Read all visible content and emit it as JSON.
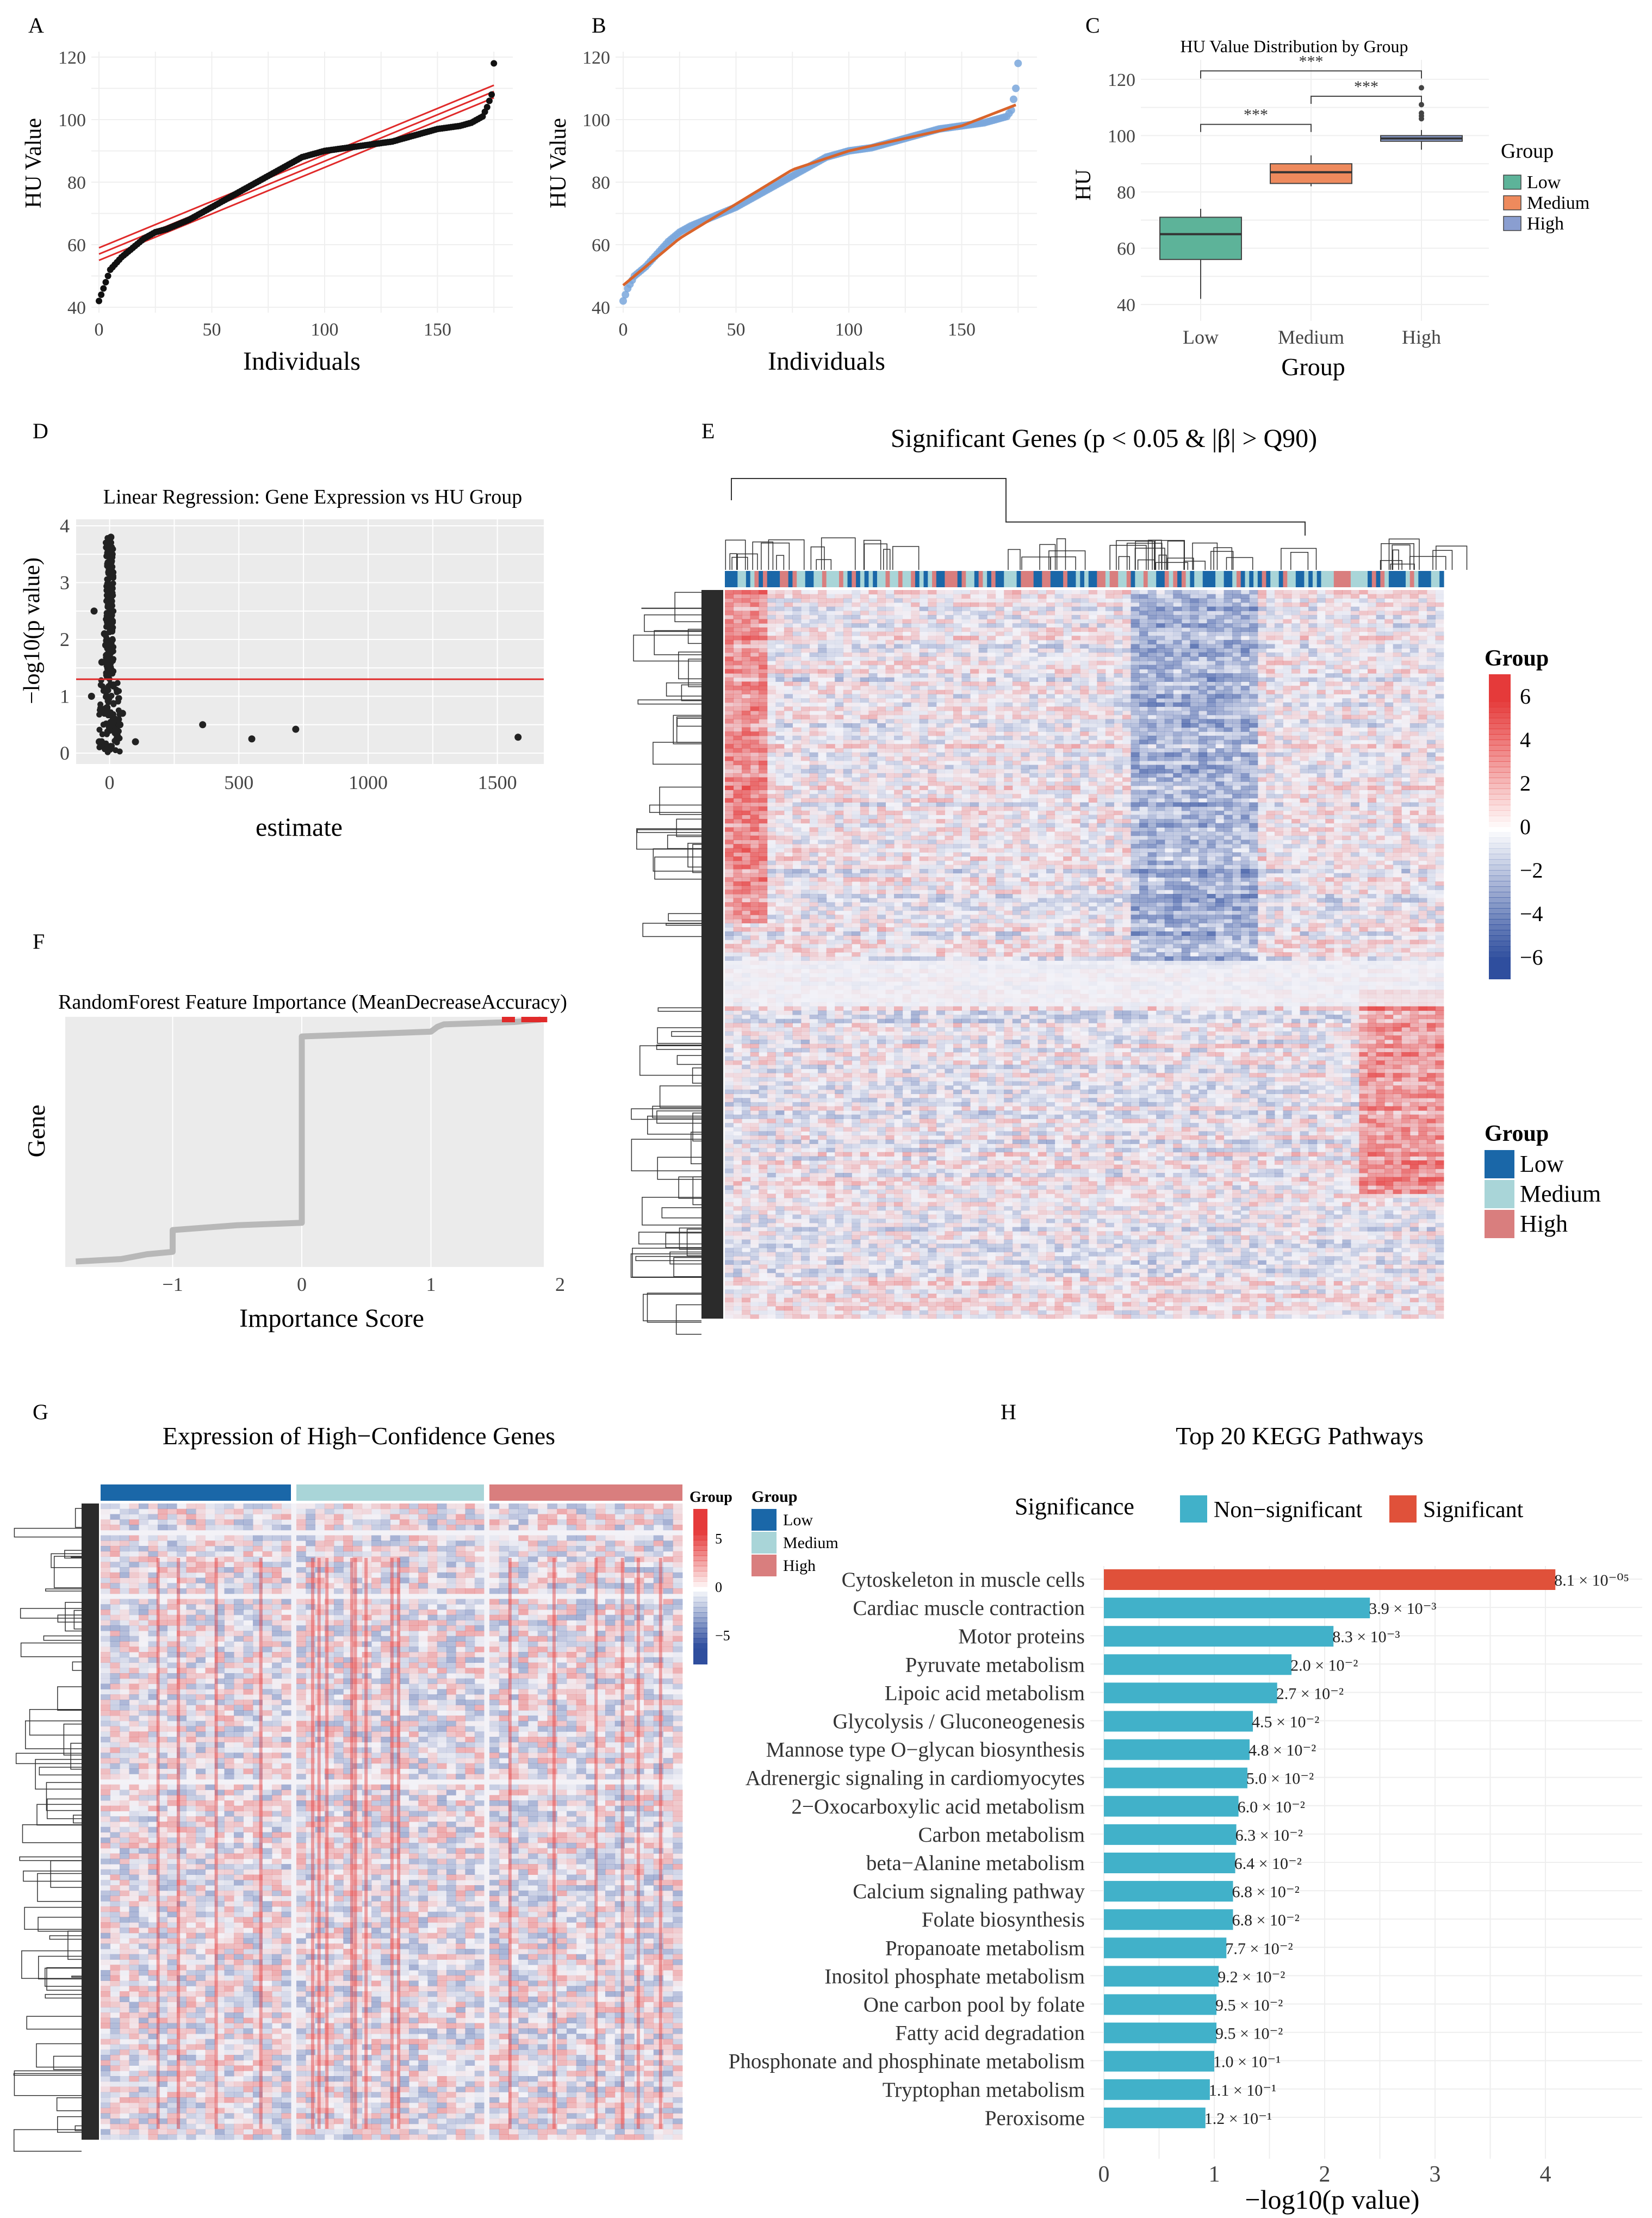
{
  "colors": {
    "low": "#5db399",
    "medium": "#ee8a5d",
    "high": "#8a9ed0",
    "heat_low": "#1a67a8",
    "heat_medium": "#a9d5d8",
    "heat_high": "#d97e7e",
    "significant": "#e0513a",
    "nonsignificant": "#41b1c9",
    "heat_pos": "#e53a3a",
    "heat_neg": "#2f4e9e",
    "panel_bg": "#ebebeb",
    "fit_red": "#e02a2a",
    "fit_orange": "#d9642b",
    "point_blue": "#7aa7dc"
  },
  "panels": {
    "A": {
      "label": "A",
      "xlabel": "Individuals",
      "ylabel": "HU Value",
      "xticks": [
        "0",
        "50",
        "100",
        "150"
      ],
      "yticks": [
        "40",
        "60",
        "80",
        "100",
        "120"
      ]
    },
    "B": {
      "label": "B",
      "xlabel": "Individuals",
      "ylabel": "HU Value",
      "xticks": [
        "0",
        "50",
        "100",
        "150"
      ],
      "yticks": [
        "40",
        "60",
        "80",
        "100",
        "120"
      ]
    },
    "C": {
      "label": "C",
      "title": "HU Value Distribution by Group",
      "xlabel": "Group",
      "ylabel": "HU",
      "yticks": [
        "40",
        "60",
        "80",
        "100",
        "120"
      ],
      "categories": [
        "Low",
        "Medium",
        "High"
      ],
      "sig_labels": [
        "***",
        "***",
        "***"
      ],
      "legend_title": "Group",
      "legend_items": [
        "Low",
        "Medium",
        "High"
      ]
    },
    "D": {
      "label": "D",
      "title": "Linear Regression: Gene Expression vs HU Group",
      "xlabel": "estimate",
      "ylabel": "−log10(p value)",
      "xticks": [
        "0",
        "500",
        "1000",
        "1500"
      ],
      "yticks": [
        "0",
        "1",
        "2",
        "3",
        "4"
      ]
    },
    "E": {
      "label": "E",
      "title": "Significant Genes (p < 0.05 & |β| > Q90)",
      "legend_title": "Group",
      "scale_ticks": [
        "6",
        "4",
        "2",
        "0",
        "−2",
        "−4",
        "−6"
      ],
      "group_legend_title": "Group",
      "group_items": [
        "Low",
        "Medium",
        "High"
      ]
    },
    "F": {
      "label": "F",
      "title": "RandomForest Feature Importance (MeanDecreaseAccuracy)",
      "xlabel": "Importance Score",
      "ylabel": "Gene",
      "xticks": [
        "−1",
        "0",
        "1",
        "2"
      ]
    },
    "G": {
      "label": "G",
      "title": "Expression of High−Confidence Genes",
      "scale_title": "Group",
      "scale_ticks": [
        "5",
        "0",
        "−5"
      ],
      "legend_title": "Group",
      "legend_items": [
        "Low",
        "Medium",
        "High"
      ]
    },
    "H": {
      "label": "H",
      "title": "Top 20 KEGG Pathways",
      "legend_title": "Significance",
      "legend_items": [
        "Non−significant",
        "Significant"
      ],
      "xlabel": "−log10(p value)",
      "xticks": [
        "0",
        "1",
        "2",
        "3",
        "4"
      ]
    }
  },
  "chart_data": [
    {
      "panel": "A",
      "type": "scatter",
      "xlim": [
        0,
        180
      ],
      "ylim": [
        40,
        120
      ],
      "x": [
        0,
        2,
        5,
        10,
        15,
        20,
        25,
        30,
        40,
        50,
        60,
        70,
        80,
        90,
        100,
        110,
        120,
        130,
        140,
        150,
        160,
        165,
        170,
        172,
        174,
        175
      ],
      "y": [
        42,
        46,
        52,
        56,
        59,
        62,
        64,
        65,
        68,
        72,
        76,
        80,
        84,
        88,
        90,
        91,
        92,
        93,
        95,
        97,
        98,
        99,
        101,
        104,
        108,
        118
      ],
      "fit_lines": [
        {
          "x": [
            0,
            175
          ],
          "y": [
            59,
            111
          ]
        },
        {
          "x": [
            0,
            175
          ],
          "y": [
            57,
            109
          ]
        },
        {
          "x": [
            0,
            175
          ],
          "y": [
            55,
            107
          ]
        }
      ]
    },
    {
      "panel": "B",
      "type": "scatter",
      "xlim": [
        0,
        180
      ],
      "ylim": [
        40,
        120
      ],
      "x": [
        0,
        2,
        5,
        10,
        15,
        20,
        25,
        30,
        40,
        50,
        60,
        70,
        80,
        90,
        100,
        110,
        120,
        130,
        140,
        150,
        160,
        165,
        170,
        172,
        174,
        175
      ],
      "y": [
        42,
        46,
        50,
        53,
        57,
        61,
        64,
        66,
        69,
        72,
        76,
        80,
        84,
        88,
        90,
        91,
        93,
        95,
        97,
        98,
        99,
        100,
        101,
        103,
        110,
        118
      ],
      "fit_curve": {
        "x": [
          0,
          10,
          25,
          50,
          75,
          100,
          125,
          150,
          175
        ],
        "y": [
          47,
          53,
          62,
          73,
          84,
          90,
          94,
          98,
          105
        ]
      }
    },
    {
      "panel": "C",
      "type": "box",
      "ylim": [
        40,
        125
      ],
      "categories": [
        "Low",
        "Medium",
        "High"
      ],
      "boxes": [
        {
          "min": 42,
          "q1": 56,
          "median": 65,
          "q3": 71,
          "max": 74
        },
        {
          "min": 82,
          "q1": 83,
          "median": 87,
          "q3": 90,
          "max": 93
        },
        {
          "min": 95,
          "q1": 98,
          "median": 99,
          "q3": 100,
          "max": 102
        }
      ],
      "outliers": [
        [
          3,
          108
        ],
        [
          3,
          106
        ],
        [
          3,
          107
        ],
        [
          3,
          117
        ],
        [
          3,
          111
        ]
      ]
    },
    {
      "panel": "D",
      "type": "scatter",
      "xlim": [
        -100,
        1650
      ],
      "ylim": [
        0,
        4
      ],
      "threshold": 1.3,
      "x": [
        -60,
        -30,
        -20,
        -10,
        0,
        5,
        10,
        15,
        20,
        -5,
        -15,
        30,
        40,
        -40,
        -70,
        100,
        50,
        360,
        550,
        720,
        1580
      ],
      "y": [
        2.5,
        1.6,
        2.1,
        0.8,
        0.4,
        3.8,
        2.9,
        1.2,
        0.6,
        2.6,
        1.9,
        0.3,
        0.5,
        0.2,
        1.0,
        0.2,
        0.7,
        0.5,
        0.25,
        0.42,
        0.28
      ]
    },
    {
      "panel": "F",
      "type": "line",
      "xlim": [
        -2,
        2
      ],
      "ylim": [
        0,
        1
      ],
      "x": [
        -1.75,
        -1.4,
        -1.2,
        -1.0,
        -1.0,
        -0.5,
        0.0,
        0.0,
        0.5,
        1.0,
        1.05,
        1.1,
        1.65,
        1.75,
        1.85
      ],
      "y": [
        0.0,
        0.01,
        0.03,
        0.04,
        0.13,
        0.15,
        0.16,
        0.93,
        0.94,
        0.95,
        0.97,
        0.98,
        0.99,
        0.995,
        1.0
      ],
      "highlight_x": [
        1.6,
        1.75,
        1.85
      ]
    },
    {
      "panel": "H",
      "type": "bar",
      "xlim": [
        0,
        4.2
      ],
      "categories": [
        "Cytoskeleton in muscle cells",
        "Cardiac muscle contraction",
        "Motor proteins",
        "Pyruvate metabolism",
        "Lipoic acid metabolism",
        "Glycolysis / Gluconeogenesis",
        "Mannose type O−glycan biosynthesis",
        "Adrenergic signaling in cardiomyocytes",
        "2−Oxocarboxylic acid metabolism",
        "Carbon metabolism",
        "beta−Alanine metabolism",
        "Calcium signaling pathway",
        "Folate biosynthesis",
        "Propanoate metabolism",
        "Inositol phosphate metabolism",
        "One carbon pool by folate",
        "Fatty acid degradation",
        "Phosphonate and phosphinate metabolism",
        "Tryptophan metabolism",
        "Peroxisome"
      ],
      "values": [
        4.09,
        2.41,
        2.08,
        1.7,
        1.57,
        1.35,
        1.32,
        1.3,
        1.22,
        1.2,
        1.19,
        1.17,
        1.17,
        1.11,
        1.04,
        1.02,
        1.02,
        1.0,
        0.96,
        0.92
      ],
      "significant": [
        true,
        false,
        false,
        false,
        false,
        false,
        false,
        false,
        false,
        false,
        false,
        false,
        false,
        false,
        false,
        false,
        false,
        false,
        false,
        false
      ],
      "value_labels": [
        "8.1 × 10⁻⁰⁵",
        "3.9 × 10⁻³",
        "8.3 × 10⁻³",
        "2.0 × 10⁻²",
        "2.7 × 10⁻²",
        "4.5 × 10⁻²",
        "4.8 × 10⁻²",
        "5.0 × 10⁻²",
        "6.0 × 10⁻²",
        "6.3 × 10⁻²",
        "6.4 × 10⁻²",
        "6.8 × 10⁻²",
        "6.8 × 10⁻²",
        "7.7 × 10⁻²",
        "9.2 × 10⁻²",
        "9.5 × 10⁻²",
        "9.5 × 10⁻²",
        "1.0 × 10⁻¹",
        "1.1 × 10⁻¹",
        "1.2 × 10⁻¹"
      ]
    }
  ]
}
